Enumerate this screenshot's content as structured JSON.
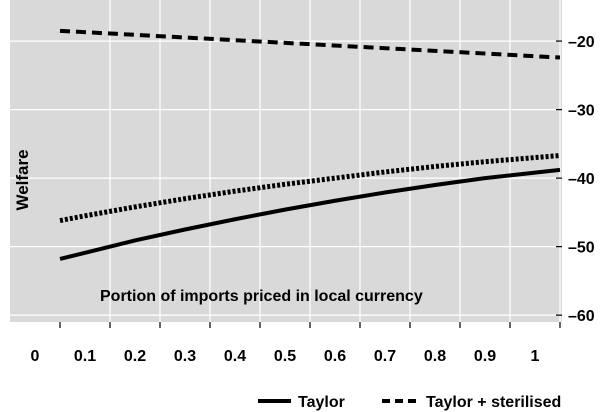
{
  "chart_data": {
    "type": "line",
    "title": "",
    "xlabel": "",
    "ylabel": "Welfare",
    "annotation": "Portion of imports priced in local currency",
    "x_ticks": [
      "0",
      "0.1",
      "0.2",
      "0.3",
      "0.4",
      "0.5",
      "0.6",
      "0.7",
      "0.8",
      "0.9",
      "1"
    ],
    "y_ticks": [
      "-20",
      "-30",
      "-40",
      "-50",
      "-60"
    ],
    "xlim": [
      0,
      1.05
    ],
    "ylim": [
      -61,
      -14
    ],
    "y_axis_side": "right",
    "grid": true,
    "background": "#d9d9d9",
    "legend_position": "bottom-right",
    "series": [
      {
        "name": "Taylor",
        "style": "solid",
        "color": "#000000",
        "x": [
          0.05,
          0.1,
          0.2,
          0.3,
          0.4,
          0.5,
          0.6,
          0.7,
          0.8,
          0.9,
          1.0,
          1.05
        ],
        "y": [
          -51.8,
          -50.9,
          -49.1,
          -47.5,
          -46.0,
          -44.6,
          -43.3,
          -42.1,
          -41.0,
          -40.0,
          -39.2,
          -38.8
        ]
      },
      {
        "name": "Taylor + sterilised",
        "style": "dashed",
        "color": "#000000",
        "x": [
          0.05,
          1.05
        ],
        "y": [
          -18.5,
          -22.4
        ]
      },
      {
        "name": "",
        "style": "dotted",
        "color": "#000000",
        "x": [
          0.05,
          0.1,
          0.2,
          0.3,
          0.4,
          0.5,
          0.6,
          0.7,
          0.8,
          0.9,
          1.0,
          1.05
        ],
        "y": [
          -46.2,
          -45.5,
          -44.2,
          -43.0,
          -41.9,
          -40.9,
          -40.0,
          -39.1,
          -38.3,
          -37.6,
          -37.0,
          -36.7
        ]
      }
    ]
  }
}
